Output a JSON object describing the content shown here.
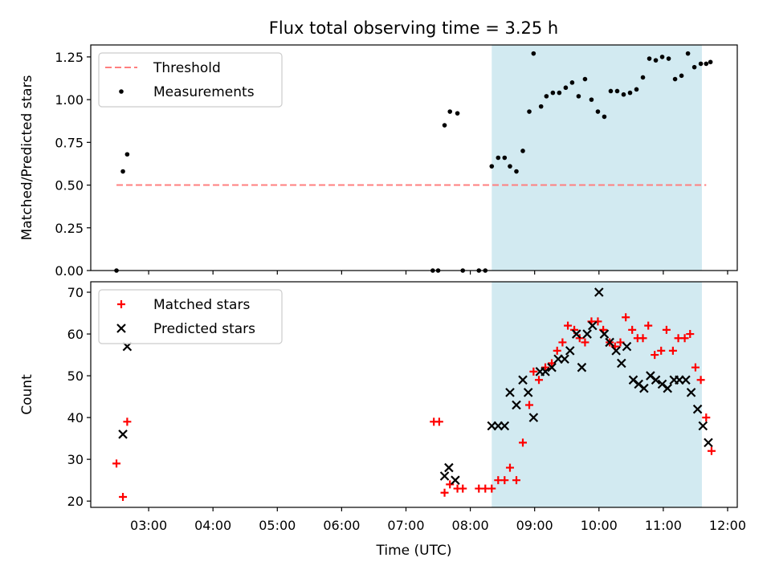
{
  "title": "Flux total observing time = 3.25 h",
  "chart_data": [
    {
      "type": "scatter",
      "ylabel": "Matched/Predicted stars",
      "xlim_hours": [
        2.1,
        12.15
      ],
      "ylim": [
        0,
        1.32
      ],
      "yticks": [
        "0.00",
        "0.25",
        "0.50",
        "0.75",
        "1.00",
        "1.25"
      ],
      "yticks_values": [
        0,
        0.25,
        0.5,
        0.75,
        1.0,
        1.25
      ],
      "span": {
        "start": "08:20",
        "end": "11:36",
        "color": "#add8e6"
      },
      "threshold": {
        "name": "Threshold",
        "value": 0.5,
        "x_start": "02:30",
        "x_end": "11:40",
        "color": "#ff7f7f",
        "style": "dashed"
      },
      "series": [
        {
          "name": "Measurements",
          "marker": "dot",
          "color": "#000000",
          "x": [
            "02:30",
            "02:36",
            "02:40",
            "07:25",
            "07:30",
            "07:36",
            "07:41",
            "07:48",
            "07:53",
            "08:08",
            "08:14",
            "08:20",
            "08:26",
            "08:32",
            "08:37",
            "08:43",
            "08:49",
            "08:55",
            "08:59",
            "09:06",
            "09:11",
            "09:17",
            "09:23",
            "09:29",
            "09:35",
            "09:41",
            "09:47",
            "09:53",
            "09:59",
            "10:05",
            "10:11",
            "10:17",
            "10:23",
            "10:29",
            "10:35",
            "10:41",
            "10:47",
            "10:53",
            "10:59",
            "11:05",
            "11:11",
            "11:17",
            "11:23",
            "11:29",
            "11:35",
            "11:40",
            "11:44"
          ],
          "y": [
            0.0,
            0.58,
            0.68,
            0.0,
            0.0,
            0.85,
            0.93,
            0.92,
            0.0,
            0.0,
            0.0,
            0.61,
            0.66,
            0.66,
            0.61,
            0.58,
            0.7,
            0.93,
            1.27,
            0.96,
            1.02,
            1.04,
            1.04,
            1.07,
            1.1,
            1.02,
            1.12,
            1.0,
            0.93,
            0.9,
            1.05,
            1.05,
            1.03,
            1.04,
            1.06,
            1.13,
            1.24,
            1.23,
            1.25,
            1.24,
            1.12,
            1.14,
            1.27,
            1.19,
            1.21,
            1.21,
            1.22
          ]
        }
      ],
      "legend": {
        "placement": "upper-left",
        "entries": [
          "Threshold",
          "Measurements"
        ]
      }
    },
    {
      "type": "scatter",
      "xlabel": "Time (UTC)",
      "ylabel": "Count",
      "xlim_hours": [
        2.1,
        12.15
      ],
      "ylim": [
        18.5,
        72.5
      ],
      "yticks": [
        "20",
        "30",
        "40",
        "50",
        "60",
        "70"
      ],
      "yticks_values": [
        20,
        30,
        40,
        50,
        60,
        70
      ],
      "xticks": [
        "03:00",
        "04:00",
        "05:00",
        "06:00",
        "07:00",
        "08:00",
        "09:00",
        "10:00",
        "11:00",
        "12:00"
      ],
      "span": {
        "start": "08:20",
        "end": "11:36",
        "color": "#add8e6"
      },
      "series": [
        {
          "name": "Matched stars",
          "marker": "plus",
          "color": "#ff0000",
          "x": [
            "02:30",
            "02:36",
            "02:40",
            "07:26",
            "07:31",
            "07:36",
            "07:41",
            "07:48",
            "07:53",
            "08:08",
            "08:14",
            "08:20",
            "08:26",
            "08:32",
            "08:37",
            "08:43",
            "08:49",
            "08:55",
            "08:59",
            "09:04",
            "09:10",
            "09:16",
            "09:21",
            "09:26",
            "09:31",
            "09:37",
            "09:42",
            "09:47",
            "09:53",
            "09:59",
            "10:04",
            "10:10",
            "10:15",
            "10:20",
            "10:25",
            "10:31",
            "10:36",
            "10:41",
            "10:46",
            "10:52",
            "10:58",
            "11:03",
            "11:09",
            "11:14",
            "11:20",
            "11:25",
            "11:30",
            "11:35",
            "11:40",
            "11:45"
          ],
          "y": [
            29,
            21,
            39,
            39,
            39,
            22,
            24,
            23,
            23,
            23,
            23,
            23,
            25,
            25,
            28,
            25,
            34,
            43,
            51,
            49,
            52,
            53,
            56,
            58,
            62,
            61,
            59,
            58,
            63,
            63,
            61,
            58,
            57,
            58,
            64,
            61,
            59,
            59,
            62,
            55,
            56,
            61,
            56,
            59,
            59,
            60,
            52,
            49,
            40,
            32
          ]
        },
        {
          "name": "Predicted stars",
          "marker": "x",
          "color": "#000000",
          "x": [
            "02:36",
            "02:40",
            "07:36",
            "07:40",
            "07:46",
            "08:20",
            "08:26",
            "08:32",
            "08:37",
            "08:43",
            "08:49",
            "08:54",
            "08:59",
            "09:05",
            "09:10",
            "09:16",
            "09:22",
            "09:28",
            "09:33",
            "09:39",
            "09:44",
            "09:49",
            "09:54",
            "10:00",
            "10:05",
            "10:10",
            "10:16",
            "10:21",
            "10:26",
            "10:32",
            "10:37",
            "10:42",
            "10:48",
            "10:53",
            "10:59",
            "11:04",
            "11:10",
            "11:15",
            "11:21",
            "11:26",
            "11:32",
            "11:37",
            "11:42"
          ],
          "y": [
            36,
            57,
            26,
            28,
            25,
            38,
            38,
            38,
            46,
            43,
            49,
            46,
            40,
            51,
            51,
            52,
            54,
            54,
            56,
            60,
            52,
            60,
            62,
            70,
            60,
            58,
            56,
            53,
            57,
            49,
            48,
            47,
            50,
            49,
            48,
            47,
            49,
            49,
            49,
            46,
            42,
            38,
            34
          ]
        }
      ],
      "legend": {
        "placement": "upper-left",
        "entries": [
          "Matched stars",
          "Predicted stars"
        ]
      }
    }
  ]
}
